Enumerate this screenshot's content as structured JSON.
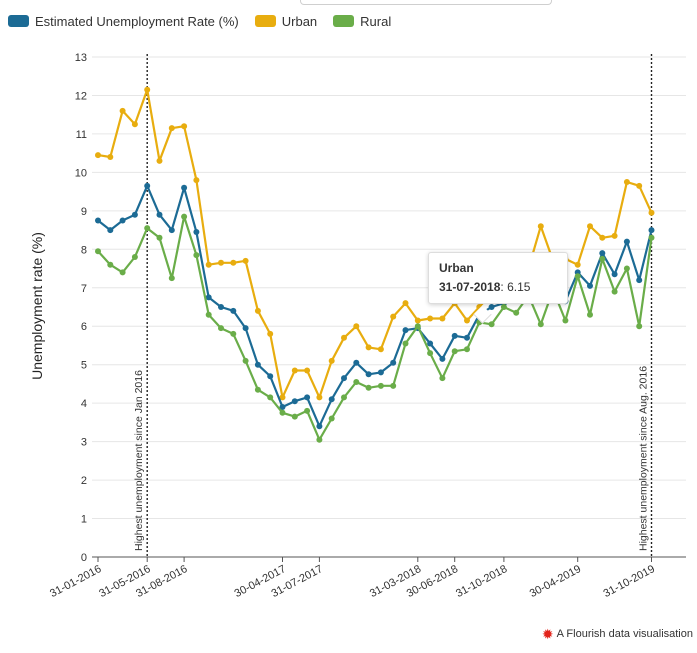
{
  "legend": {
    "items": [
      {
        "label": "Estimated Unemployment Rate (%)",
        "color": "#1c6b95"
      },
      {
        "label": "Urban",
        "color": "#e8ad0f"
      },
      {
        "label": "Rural",
        "color": "#6aad49"
      }
    ]
  },
  "tooltip": {
    "series": "Urban",
    "date": "31-07-2018",
    "separator": ":",
    "value": "6.15"
  },
  "credit": {
    "text": "A Flourish data visualisation",
    "icon": "flourish-star-icon"
  },
  "chart_data": {
    "type": "line",
    "ylabel": "Unemployment rate (%)",
    "ylim": [
      0,
      13
    ],
    "yticks": [
      0,
      1,
      2,
      3,
      4,
      5,
      6,
      7,
      8,
      9,
      10,
      11,
      12,
      13
    ],
    "grid": true,
    "legend_position": "top-left",
    "x_start": "31-01-2016",
    "x_frequency": "monthly",
    "x_tick_labels": [
      {
        "label": "31-01-2016",
        "index": 0
      },
      {
        "label": "31-05-2016",
        "index": 4
      },
      {
        "label": "31-08-2016",
        "index": 7
      },
      {
        "label": "30-04-2017",
        "index": 15
      },
      {
        "label": "31-07-2017",
        "index": 18
      },
      {
        "label": "31-03-2018",
        "index": 26
      },
      {
        "label": "30-06-2018",
        "index": 29
      },
      {
        "label": "31-10-2018",
        "index": 33
      },
      {
        "label": "30-04-2019",
        "index": 39
      },
      {
        "label": "31-10-2019",
        "index": 45
      }
    ],
    "annotations": [
      {
        "label": "Highest unemployment since Jan 2016",
        "index": 4
      },
      {
        "label": "Highest unemployment since Aug. 2016",
        "index": 45
      }
    ],
    "series": [
      {
        "name": "Estimated Unemployment Rate (%)",
        "color": "#1c6b95",
        "values": [
          8.75,
          8.5,
          8.75,
          8.9,
          9.65,
          8.9,
          8.5,
          9.6,
          8.45,
          6.75,
          6.5,
          6.4,
          5.95,
          5.0,
          4.7,
          3.9,
          4.05,
          4.15,
          3.4,
          4.1,
          4.65,
          5.05,
          4.75,
          4.8,
          5.05,
          5.9,
          5.95,
          5.55,
          5.15,
          5.75,
          5.7,
          6.3,
          6.5,
          6.6,
          6.7,
          7.05,
          6.9,
          7.2,
          6.65,
          7.4,
          7.05,
          7.9,
          7.35,
          8.2,
          7.2,
          8.5
        ]
      },
      {
        "name": "Urban",
        "color": "#e8ad0f",
        "values": [
          10.45,
          10.4,
          11.6,
          11.25,
          12.15,
          10.3,
          11.15,
          11.2,
          9.8,
          7.6,
          7.65,
          7.65,
          7.7,
          6.4,
          5.8,
          4.15,
          4.85,
          4.85,
          4.15,
          5.1,
          5.7,
          6.0,
          5.45,
          5.4,
          6.25,
          6.6,
          6.15,
          6.2,
          6.2,
          6.6,
          6.15,
          6.5,
          6.85,
          7.0,
          7.3,
          7.5,
          8.6,
          7.7,
          7.75,
          7.6,
          8.6,
          8.3,
          8.35,
          9.75,
          9.65,
          8.95
        ]
      },
      {
        "name": "Rural",
        "color": "#6aad49",
        "values": [
          7.95,
          7.6,
          7.4,
          7.8,
          8.55,
          8.3,
          7.25,
          8.85,
          7.85,
          6.3,
          5.95,
          5.8,
          5.1,
          4.35,
          4.15,
          3.75,
          3.65,
          3.8,
          3.05,
          3.6,
          4.15,
          4.55,
          4.4,
          4.45,
          4.45,
          5.55,
          6.0,
          5.3,
          4.65,
          5.35,
          5.4,
          6.1,
          6.05,
          6.5,
          6.35,
          6.8,
          6.05,
          6.95,
          6.15,
          7.3,
          6.3,
          7.75,
          6.9,
          7.5,
          6.0,
          8.3
        ]
      }
    ]
  }
}
